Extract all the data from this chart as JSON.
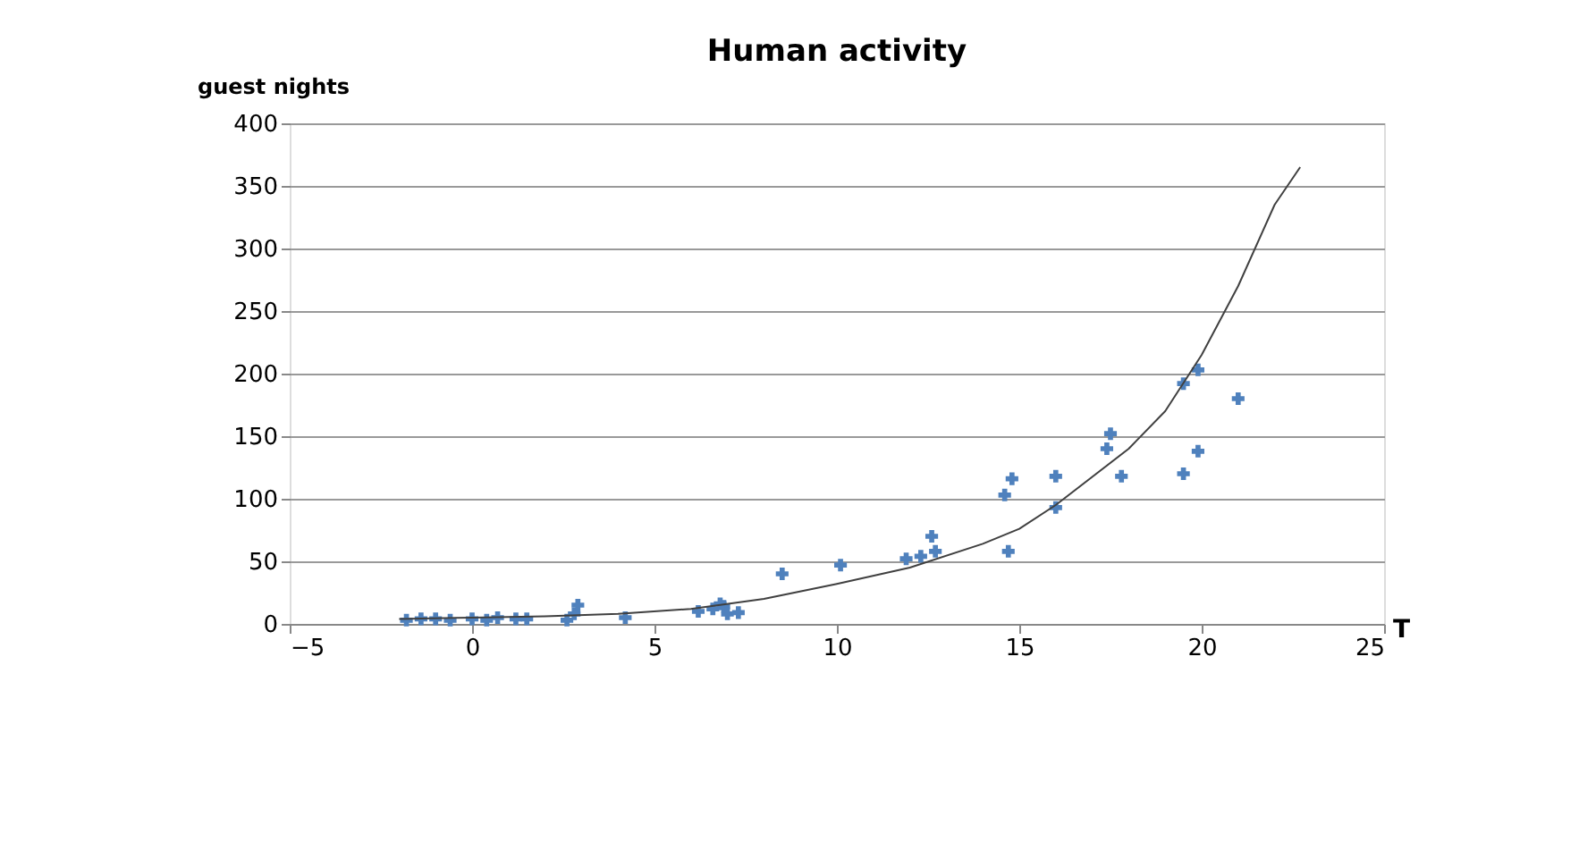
{
  "chart_data": {
    "type": "scatter",
    "title": "Human activity",
    "ylabel": "guest nights",
    "xlabel": "T",
    "xlim": [
      -5,
      25
    ],
    "xticks": [
      -5,
      0,
      5,
      10,
      15,
      20,
      25
    ],
    "ylim": [
      0,
      400
    ],
    "yticks": [
      0,
      50,
      100,
      150,
      200,
      250,
      300,
      350,
      400
    ],
    "grid": "y",
    "marker": "cross",
    "series": [
      {
        "color": "#4f81bd",
        "x": [
          -1.8,
          -1.4,
          -1,
          -0.6,
          0,
          0.4,
          0.7,
          1.2,
          1.5,
          2.6,
          2.8,
          2.9,
          4.2,
          6.2,
          6.6,
          6.8,
          6.9,
          7,
          7.3,
          8.5,
          10.1,
          11.9,
          12.3,
          12.6,
          12.7,
          14.6,
          14.7,
          14.8,
          16,
          16,
          17.4,
          17.5,
          17.8,
          19.5,
          19.5,
          19.9,
          19.9,
          21
        ],
        "values": [
          3,
          4,
          4,
          3,
          4,
          3,
          5,
          4,
          4,
          3,
          8,
          15,
          5,
          10,
          12,
          16,
          14,
          8,
          9,
          40,
          47,
          52,
          54,
          70,
          58,
          103,
          58,
          116,
          118,
          93,
          140,
          152,
          118,
          192,
          120,
          203,
          138,
          180
        ]
      },
      {
        "type": "line",
        "color": "#404040",
        "marker": "none",
        "x": [
          -2,
          0,
          2,
          4,
          6,
          8,
          10,
          12,
          14,
          15,
          16,
          18,
          19,
          20,
          21,
          22,
          22.7
        ],
        "values": [
          4,
          5,
          6,
          8,
          12,
          20,
          32,
          45,
          64,
          76,
          95,
          140,
          170,
          215,
          270,
          335,
          365
        ]
      }
    ]
  }
}
